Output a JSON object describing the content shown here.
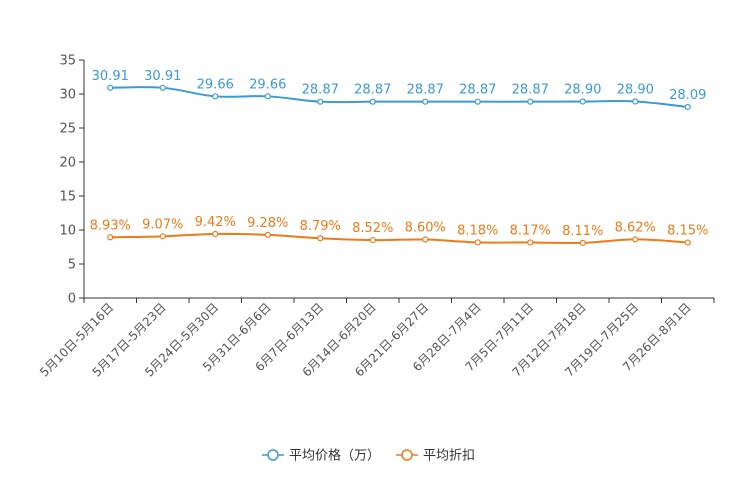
{
  "chart_data": {
    "type": "line",
    "title": "",
    "xlabel": "",
    "ylabel": "",
    "ylim": [
      0,
      35
    ],
    "yticks": [
      0,
      5,
      10,
      15,
      20,
      25,
      30,
      35
    ],
    "grid": false,
    "legend_position": "bottom-center",
    "categories": [
      "5月10日-5月16日",
      "5月17日-5月23日",
      "5月24日-5月30日",
      "5月31日-6月6日",
      "6月7日-6月13日",
      "6月14日-6月20日",
      "6月21日-6月27日",
      "6月28日-7月4日",
      "7月5日-7月11日",
      "7月12日-7月18日",
      "7月19日-7月25日",
      "7月26日-8月1日"
    ],
    "series": [
      {
        "name": "平均价格（万）",
        "color": "#3a9bd5",
        "values": [
          30.91,
          30.91,
          29.66,
          29.66,
          28.87,
          28.87,
          28.87,
          28.87,
          28.87,
          28.9,
          28.9,
          28.09
        ],
        "labels": [
          "30.91",
          "30.91",
          "29.66",
          "29.66",
          "28.87",
          "28.87",
          "28.87",
          "28.87",
          "28.87",
          "28.90",
          "28.90",
          "28.09"
        ]
      },
      {
        "name": "平均折扣",
        "color": "#f07a1a",
        "values": [
          8.93,
          9.07,
          9.42,
          9.28,
          8.79,
          8.52,
          8.6,
          8.18,
          8.17,
          8.11,
          8.62,
          8.15
        ],
        "labels": [
          "8.93%",
          "9.07%",
          "9.42%",
          "9.28%",
          "8.79%",
          "8.52%",
          "8.60%",
          "8.18%",
          "8.17%",
          "8.11%",
          "8.62%",
          "8.15%"
        ]
      }
    ]
  }
}
